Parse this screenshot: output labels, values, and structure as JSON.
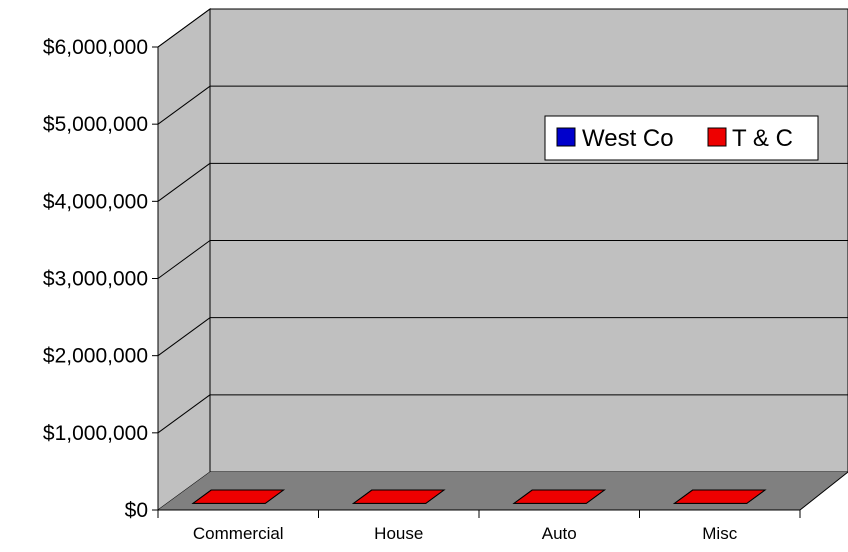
{
  "chart_data": {
    "type": "bar",
    "style": "3d-column",
    "categories": [
      "Commercial",
      "House",
      "Auto",
      "Misc"
    ],
    "series": [
      {
        "name": "West Co",
        "values": [
          0,
          0,
          0,
          0
        ],
        "color": "#0000cc"
      },
      {
        "name": "T & C",
        "values": [
          0,
          0,
          0,
          0
        ],
        "color": "#ee0000"
      }
    ],
    "yticks": [
      "$0",
      "$1,000,000",
      "$2,000,000",
      "$3,000,000",
      "$4,000,000",
      "$5,000,000",
      "$6,000,000"
    ],
    "ylim": [
      0,
      6000000
    ],
    "grid": true,
    "legend_position": "top-right",
    "colors": {
      "wall": "#c0c0c0",
      "floor": "#808080",
      "grid": "#000000"
    }
  }
}
